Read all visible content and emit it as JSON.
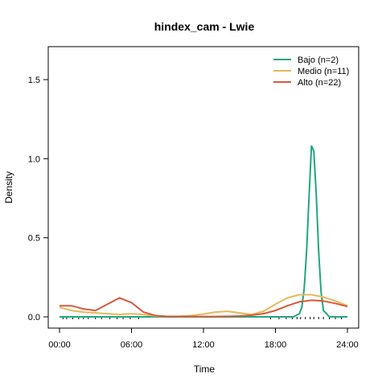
{
  "chart_data": {
    "type": "line",
    "title": "hindex_cam - Lwie",
    "xlabel": "Time",
    "ylabel": "Density",
    "xlim": [
      0,
      24
    ],
    "ylim": [
      0,
      1.7
    ],
    "x_ticks": [
      {
        "value": 0,
        "label": "00:00"
      },
      {
        "value": 6,
        "label": "06:00"
      },
      {
        "value": 12,
        "label": "12:00"
      },
      {
        "value": 18,
        "label": "18:00"
      },
      {
        "value": 24,
        "label": "24:00"
      }
    ],
    "y_ticks": [
      {
        "value": 0,
        "label": "0.0"
      },
      {
        "value": 0.5,
        "label": "0.5"
      },
      {
        "value": 1.0,
        "label": "1.0"
      },
      {
        "value": 1.5,
        "label": "1.5"
      }
    ],
    "legend_position": "top-right",
    "grid": false,
    "series": [
      {
        "name": "Bajo (n=2)",
        "color": "#1fa77e",
        "x": [
          0,
          2,
          4,
          6,
          8,
          10,
          12,
          14,
          16,
          18,
          19,
          19.5,
          20,
          20.2,
          20.4,
          20.6,
          20.8,
          21,
          21.2,
          21.4,
          21.6,
          21.8,
          22,
          22.5,
          23,
          24
        ],
        "y": [
          0,
          0,
          0,
          0,
          0,
          0,
          0,
          0,
          0,
          0,
          0,
          0,
          0.02,
          0.06,
          0.18,
          0.42,
          0.76,
          1.08,
          1.05,
          0.78,
          0.42,
          0.16,
          0.04,
          0,
          0,
          0
        ]
      },
      {
        "name": "Medio (n=11)",
        "color": "#e5b85a",
        "x": [
          0,
          1,
          2,
          3,
          4,
          5,
          6,
          7,
          8,
          9,
          10,
          11,
          12,
          13,
          14,
          15,
          16,
          17,
          18,
          19,
          20,
          21,
          22,
          23,
          24
        ],
        "y": [
          0.06,
          0.04,
          0.03,
          0.025,
          0.02,
          0.015,
          0.02,
          0.015,
          0.005,
          0.003,
          0.003,
          0.008,
          0.018,
          0.03,
          0.035,
          0.025,
          0.015,
          0.035,
          0.08,
          0.12,
          0.14,
          0.14,
          0.125,
          0.1,
          0.07
        ]
      },
      {
        "name": "Alto (n=22)",
        "color": "#d9583c",
        "x": [
          0,
          1,
          2,
          3,
          4,
          5,
          6,
          7,
          8,
          9,
          10,
          11,
          12,
          13,
          14,
          15,
          16,
          17,
          18,
          19,
          20,
          21,
          22,
          23,
          24
        ],
        "y": [
          0.07,
          0.07,
          0.05,
          0.04,
          0.08,
          0.12,
          0.09,
          0.03,
          0.008,
          0.002,
          0.002,
          0.002,
          0.002,
          0.002,
          0.003,
          0.005,
          0.01,
          0.02,
          0.04,
          0.07,
          0.095,
          0.105,
          0.1,
          0.085,
          0.065
        ]
      }
    ],
    "rug": [
      0.3,
      0.6,
      1.1,
      1.6,
      2.0,
      2.4,
      3.0,
      3.5,
      4.2,
      4.8,
      5.3,
      5.9,
      6.6,
      17.6,
      18.3,
      18.9,
      19.4,
      19.8,
      20.1,
      20.5,
      20.9,
      21.2,
      21.6,
      22.0,
      22.5,
      23.0,
      23.5
    ]
  }
}
